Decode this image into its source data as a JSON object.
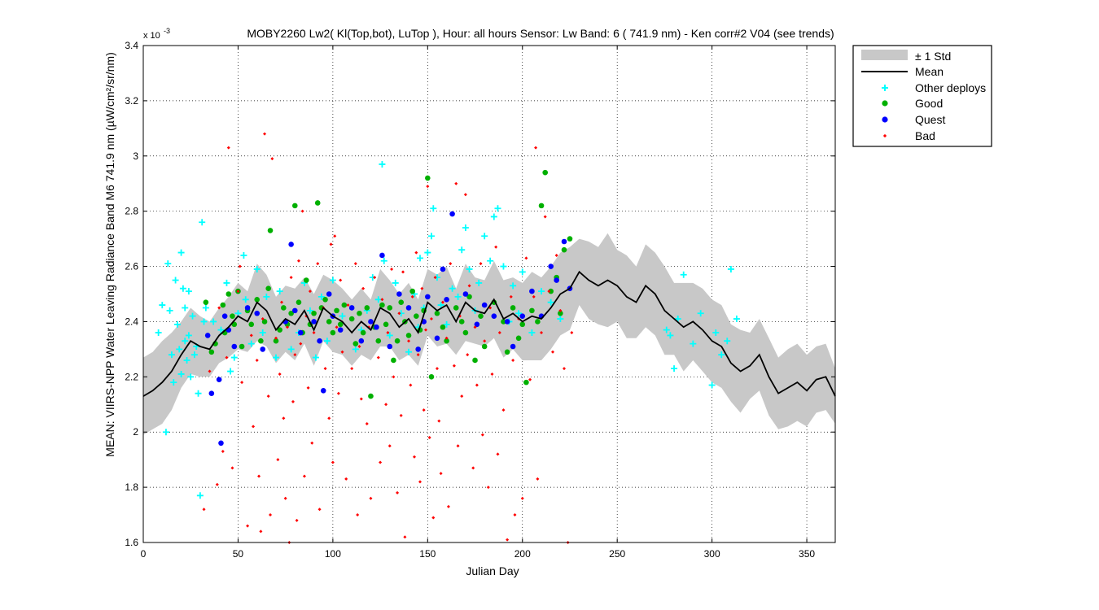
{
  "chart_data": {
    "type": "scatter",
    "title": "MOBY2260   Lw2( Kl(Top,bot), LuTop ),   Hour: all hours  Sensor: Lw Band: 6 ( 741.9 nm)  - Ken corr#2 V04 (see trends)",
    "xlabel": "Julian Day",
    "ylabel": "MEAN: VIIRS-NPP Water Leaving Radiance Band M6 741.9 nm (µW/cm²/sr/nm)",
    "y_exponent_label": "x 10",
    "y_exponent_power": "-3",
    "xlim": [
      0,
      365
    ],
    "ylim": [
      1.6,
      3.4
    ],
    "y_multiplier": 0.001,
    "xticks": [
      0,
      50,
      100,
      150,
      200,
      250,
      300,
      350
    ],
    "yticks": [
      1.6,
      1.8,
      2.0,
      2.2,
      2.4,
      2.6,
      2.8,
      3.0,
      3.2,
      3.4
    ],
    "ytick_labels": [
      "1.6",
      "1.8",
      "2",
      "2.2",
      "2.4",
      "2.6",
      "2.8",
      "3",
      "3.2",
      "3.4"
    ],
    "grid": true,
    "legend_position": "outside-top-right",
    "legend": [
      "± 1 Std",
      "Mean",
      "Other deploys",
      "Good",
      "Quest",
      "Bad"
    ],
    "colors": {
      "std_band": "#c8c8c8",
      "mean": "#000000",
      "other": "#00ffff",
      "good": "#00b000",
      "quest": "#0000ff",
      "bad": "#ff0000"
    },
    "mean": {
      "x": [
        0,
        5,
        10,
        15,
        20,
        25,
        30,
        35,
        40,
        45,
        50,
        55,
        60,
        65,
        70,
        75,
        80,
        85,
        90,
        95,
        100,
        105,
        110,
        115,
        120,
        125,
        130,
        135,
        140,
        145,
        150,
        155,
        160,
        165,
        170,
        175,
        180,
        185,
        190,
        195,
        200,
        205,
        210,
        215,
        220,
        225,
        230,
        235,
        240,
        245,
        250,
        255,
        260,
        265,
        270,
        275,
        280,
        285,
        290,
        295,
        300,
        305,
        310,
        315,
        320,
        325,
        330,
        335,
        340,
        345,
        350,
        355,
        360,
        365
      ],
      "y": [
        2.13,
        2.15,
        2.18,
        2.22,
        2.28,
        2.33,
        2.31,
        2.3,
        2.35,
        2.38,
        2.42,
        2.4,
        2.47,
        2.44,
        2.37,
        2.41,
        2.39,
        2.44,
        2.37,
        2.45,
        2.42,
        2.4,
        2.36,
        2.4,
        2.37,
        2.45,
        2.43,
        2.38,
        2.41,
        2.36,
        2.47,
        2.44,
        2.46,
        2.4,
        2.47,
        2.44,
        2.43,
        2.48,
        2.41,
        2.43,
        2.4,
        2.42,
        2.41,
        2.45,
        2.5,
        2.52,
        2.58,
        2.55,
        2.53,
        2.55,
        2.53,
        2.49,
        2.47,
        2.53,
        2.5,
        2.44,
        2.41,
        2.38,
        2.4,
        2.37,
        2.33,
        2.31,
        2.25,
        2.22,
        2.24,
        2.28,
        2.2,
        2.14,
        2.16,
        2.18,
        2.15,
        2.19,
        2.2,
        2.13
      ],
      "std": [
        0.14,
        0.14,
        0.15,
        0.14,
        0.12,
        0.12,
        0.11,
        0.1,
        0.1,
        0.11,
        0.12,
        0.11,
        0.14,
        0.13,
        0.12,
        0.12,
        0.13,
        0.12,
        0.13,
        0.12,
        0.13,
        0.12,
        0.12,
        0.12,
        0.11,
        0.14,
        0.12,
        0.12,
        0.13,
        0.12,
        0.12,
        0.13,
        0.14,
        0.12,
        0.14,
        0.12,
        0.12,
        0.14,
        0.14,
        0.13,
        0.14,
        0.16,
        0.15,
        0.15,
        0.15,
        0.15,
        0.12,
        0.14,
        0.14,
        0.17,
        0.13,
        0.15,
        0.13,
        0.15,
        0.15,
        0.16,
        0.13,
        0.16,
        0.14,
        0.15,
        0.15,
        0.15,
        0.14,
        0.15,
        0.12,
        0.13,
        0.14,
        0.13,
        0.14,
        0.14,
        0.13,
        0.12,
        0.12,
        0.1
      ]
    },
    "series": [
      {
        "name": "Other deploys",
        "x": [
          8,
          10,
          12,
          13,
          14,
          15,
          16,
          17,
          18,
          19,
          20,
          20,
          21,
          22,
          22,
          23,
          24,
          24,
          25,
          26,
          27,
          28,
          29,
          30,
          31,
          32,
          33,
          37,
          41,
          44,
          46,
          48,
          50,
          53,
          54,
          57,
          60,
          63,
          65,
          70,
          72,
          75,
          78,
          82,
          85,
          88,
          91,
          94,
          97,
          100,
          105,
          112,
          115,
          118,
          121,
          124,
          126,
          127,
          130,
          133,
          136,
          140,
          143,
          145,
          146,
          148,
          150,
          152,
          153,
          155,
          157,
          160,
          163,
          166,
          168,
          170,
          172,
          175,
          177,
          180,
          183,
          185,
          187,
          190,
          193,
          195,
          198,
          200,
          205,
          210,
          215,
          220,
          276,
          278,
          280,
          282,
          285,
          290,
          294,
          300,
          302,
          305,
          308,
          310,
          313
        ],
        "y": [
          2.36,
          2.46,
          2.0,
          2.61,
          2.44,
          2.28,
          2.18,
          2.55,
          2.39,
          2.3,
          2.21,
          2.65,
          2.52,
          2.33,
          2.45,
          2.26,
          2.35,
          2.51,
          2.2,
          2.42,
          2.28,
          2.31,
          2.14,
          1.77,
          2.76,
          2.4,
          2.45,
          2.4,
          2.37,
          2.54,
          2.22,
          2.27,
          2.43,
          2.64,
          2.48,
          2.32,
          2.59,
          2.36,
          2.49,
          2.27,
          2.51,
          2.4,
          2.3,
          2.36,
          2.54,
          2.44,
          2.27,
          2.49,
          2.33,
          2.55,
          2.42,
          2.3,
          2.37,
          2.44,
          2.56,
          2.48,
          2.97,
          2.62,
          2.35,
          2.54,
          2.43,
          2.29,
          2.5,
          2.38,
          2.63,
          2.45,
          2.65,
          2.71,
          2.81,
          2.56,
          2.46,
          2.39,
          2.52,
          2.49,
          2.66,
          2.74,
          2.59,
          2.44,
          2.54,
          2.71,
          2.62,
          2.78,
          2.81,
          2.6,
          2.4,
          2.53,
          2.43,
          2.58,
          2.36,
          2.51,
          2.47,
          2.41,
          2.37,
          2.35,
          2.23,
          2.41,
          2.57,
          2.32,
          2.43,
          2.17,
          2.36,
          2.28,
          2.33,
          2.59,
          2.41
        ]
      },
      {
        "name": "Good",
        "x": [
          33,
          36,
          38,
          42,
          43,
          45,
          47,
          48,
          50,
          52,
          55,
          57,
          60,
          62,
          64,
          66,
          67,
          70,
          72,
          74,
          76,
          78,
          80,
          82,
          84,
          86,
          88,
          90,
          92,
          94,
          96,
          98,
          100,
          102,
          104,
          106,
          110,
          112,
          114,
          116,
          118,
          120,
          122,
          124,
          126,
          128,
          130,
          132,
          134,
          136,
          138,
          140,
          142,
          144,
          146,
          148,
          150,
          152,
          155,
          158,
          160,
          165,
          168,
          170,
          172,
          175,
          178,
          180,
          185,
          190,
          192,
          195,
          198,
          200,
          202,
          205,
          208,
          210,
          212,
          215,
          218,
          220,
          222,
          225
        ],
        "y": [
          2.47,
          2.29,
          2.32,
          2.46,
          2.36,
          2.5,
          2.42,
          2.39,
          2.51,
          2.31,
          2.44,
          2.39,
          2.48,
          2.33,
          2.4,
          2.52,
          2.73,
          2.33,
          2.37,
          2.45,
          2.39,
          2.43,
          2.82,
          2.47,
          2.36,
          2.55,
          2.39,
          2.43,
          2.83,
          2.45,
          2.48,
          2.4,
          2.36,
          2.44,
          2.39,
          2.46,
          2.41,
          2.32,
          2.43,
          2.36,
          2.45,
          2.13,
          2.38,
          2.33,
          2.46,
          2.39,
          2.45,
          2.26,
          2.33,
          2.47,
          2.4,
          2.35,
          2.51,
          2.42,
          2.37,
          2.44,
          2.92,
          2.2,
          2.43,
          2.38,
          2.33,
          2.45,
          2.4,
          2.36,
          2.49,
          2.26,
          2.42,
          2.31,
          2.47,
          2.4,
          2.29,
          2.45,
          2.34,
          2.39,
          2.18,
          2.44,
          2.4,
          2.82,
          2.94,
          2.51,
          2.56,
          2.43,
          2.66,
          2.7
        ]
      },
      {
        "name": "Quest",
        "x": [
          34,
          36,
          40,
          41,
          43,
          45,
          48,
          55,
          60,
          63,
          75,
          78,
          80,
          83,
          90,
          93,
          95,
          98,
          100,
          104,
          110,
          115,
          120,
          123,
          126,
          130,
          135,
          140,
          145,
          148,
          150,
          155,
          158,
          160,
          163,
          170,
          176,
          180,
          185,
          192,
          195,
          200,
          205,
          210,
          215,
          218,
          222,
          225
        ],
        "y": [
          2.35,
          2.14,
          2.19,
          1.96,
          2.42,
          2.37,
          2.31,
          2.45,
          2.43,
          2.3,
          2.4,
          2.68,
          2.44,
          2.36,
          2.4,
          2.33,
          2.15,
          2.5,
          2.42,
          2.37,
          2.45,
          2.33,
          2.4,
          2.38,
          2.64,
          2.31,
          2.5,
          2.45,
          2.3,
          2.4,
          2.49,
          2.34,
          2.59,
          2.48,
          2.79,
          2.5,
          2.39,
          2.46,
          2.42,
          2.4,
          2.31,
          2.42,
          2.51,
          2.42,
          2.6,
          2.55,
          2.69,
          2.52
        ]
      },
      {
        "name": "Bad",
        "x": [
          32,
          35,
          39,
          40,
          42,
          44,
          45,
          47,
          50,
          51,
          52,
          55,
          57,
          58,
          60,
          61,
          62,
          63,
          64,
          66,
          67,
          68,
          70,
          71,
          72,
          73,
          74,
          75,
          76,
          77,
          78,
          79,
          80,
          81,
          82,
          83,
          84,
          85,
          86,
          87,
          88,
          89,
          90,
          92,
          93,
          95,
          96,
          98,
          99,
          100,
          101,
          102,
          103,
          104,
          105,
          107,
          108,
          110,
          112,
          113,
          114,
          115,
          116,
          118,
          119,
          120,
          122,
          124,
          125,
          126,
          128,
          129,
          130,
          131,
          132,
          134,
          135,
          136,
          137,
          138,
          140,
          141,
          142,
          143,
          144,
          145,
          146,
          147,
          148,
          149,
          150,
          151,
          152,
          153,
          154,
          155,
          156,
          157,
          158,
          160,
          161,
          162,
          164,
          165,
          166,
          167,
          168,
          170,
          171,
          172,
          174,
          175,
          176,
          178,
          179,
          180,
          182,
          183,
          184,
          186,
          187,
          188,
          190,
          192,
          194,
          195,
          196,
          198,
          200,
          202,
          204,
          206,
          207,
          208,
          210,
          212,
          214,
          216,
          218,
          220,
          222,
          224,
          226
        ],
        "y": [
          1.72,
          2.22,
          1.81,
          2.45,
          1.93,
          2.27,
          3.03,
          1.87,
          2.51,
          2.6,
          2.18,
          1.66,
          2.35,
          2.02,
          2.26,
          1.84,
          1.64,
          2.41,
          3.08,
          2.13,
          1.7,
          2.99,
          2.34,
          1.9,
          2.21,
          2.47,
          2.05,
          1.76,
          2.38,
          1.6,
          2.56,
          2.11,
          2.28,
          1.68,
          2.62,
          2.32,
          2.8,
          1.84,
          2.42,
          2.16,
          2.51,
          1.96,
          2.36,
          2.61,
          1.72,
          2.45,
          2.23,
          2.05,
          2.68,
          1.89,
          2.71,
          2.38,
          2.14,
          2.55,
          2.29,
          1.83,
          2.46,
          2.23,
          2.61,
          1.7,
          2.31,
          2.12,
          2.52,
          2.03,
          2.38,
          1.76,
          2.56,
          2.27,
          1.89,
          2.48,
          2.1,
          2.36,
          1.95,
          2.59,
          2.2,
          1.78,
          2.43,
          2.06,
          2.58,
          1.62,
          2.33,
          2.17,
          2.49,
          1.91,
          2.65,
          2.28,
          1.82,
          2.52,
          2.08,
          2.37,
          2.89,
          1.98,
          2.41,
          1.69,
          2.56,
          2.23,
          2.04,
          1.85,
          2.47,
          2.34,
          1.73,
          2.61,
          2.24,
          2.9,
          1.95,
          2.42,
          2.13,
          2.86,
          2.28,
          2.53,
          1.87,
          2.38,
          2.17,
          2.61,
          1.99,
          2.33,
          1.8,
          2.45,
          2.21,
          2.67,
          1.92,
          2.36,
          2.08,
          1.61,
          2.49,
          2.26,
          1.7,
          2.41,
          1.76,
          2.63,
          2.19,
          2.49,
          3.03,
          1.83,
          2.36,
          2.78,
          2.51,
          2.29,
          2.64,
          2.44,
          2.23,
          1.6,
          2.36
        ]
      }
    ]
  }
}
